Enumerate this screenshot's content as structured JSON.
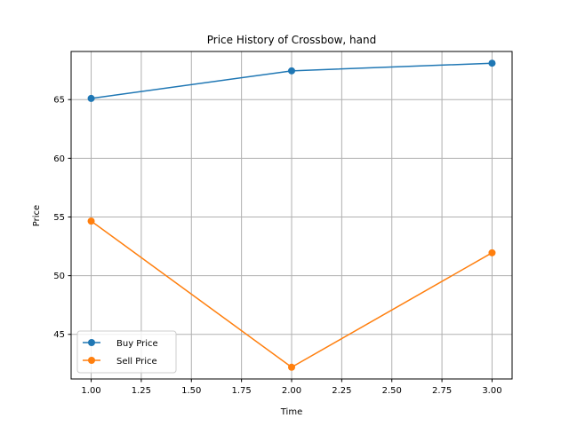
{
  "chart_data": {
    "type": "line",
    "title": "Price History of Crossbow, hand",
    "xlabel": "Time",
    "ylabel": "Price",
    "xlim": [
      0.9,
      3.1
    ],
    "ylim": [
      41.2,
      69.1
    ],
    "xticks": [
      "1.00",
      "1.25",
      "1.50",
      "1.75",
      "2.00",
      "2.25",
      "2.50",
      "2.75",
      "3.00"
    ],
    "yticks": [
      "45",
      "50",
      "55",
      "60",
      "65"
    ],
    "grid": true,
    "legend": "lower-left",
    "x": [
      1,
      2,
      3
    ],
    "series": [
      {
        "name": "Buy Price",
        "values": [
          65.1,
          67.45,
          68.1
        ],
        "color": "#1f77b4"
      },
      {
        "name": "Sell Price",
        "values": [
          54.65,
          42.2,
          51.95
        ],
        "color": "#ff7f0e"
      }
    ]
  }
}
